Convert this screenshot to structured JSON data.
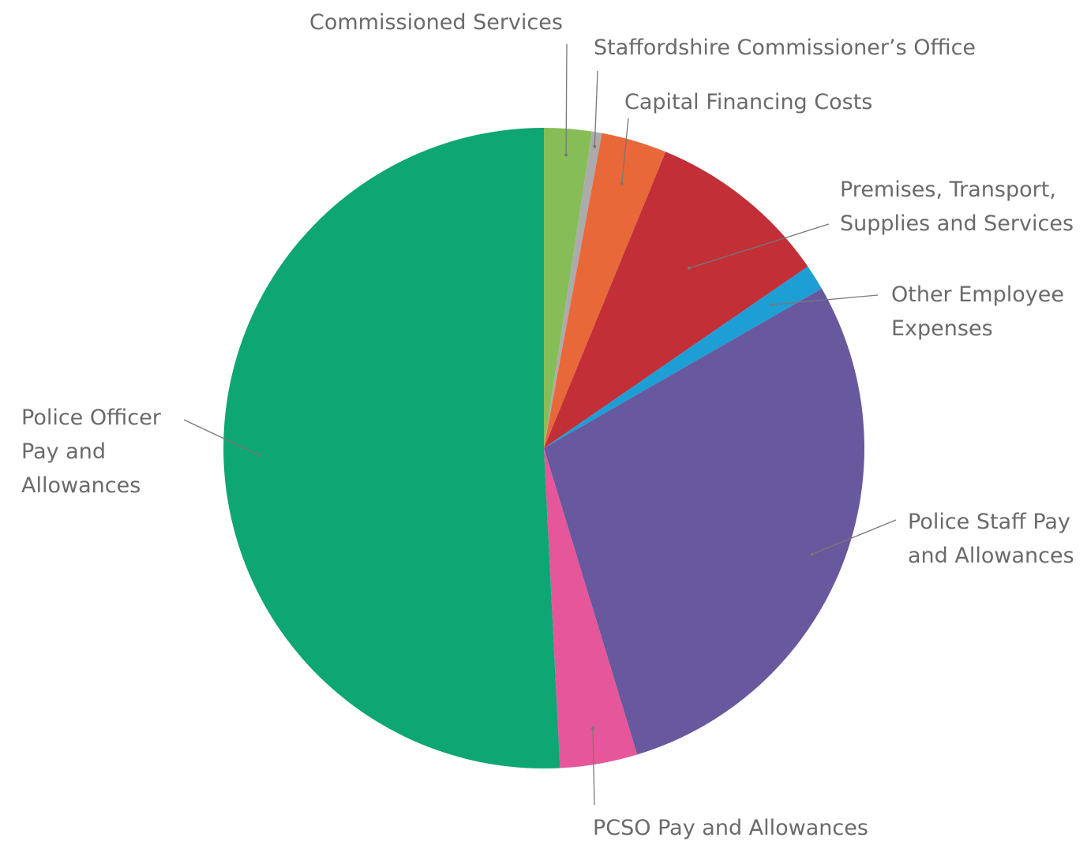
{
  "chart_data": {
    "type": "pie",
    "title": "",
    "start_angle_deg": 0,
    "direction": "clockwise",
    "slices": [
      {
        "label": "Commissioned Services",
        "value": 2.4,
        "color": "#86bd57"
      },
      {
        "label": "Staffordshire Commissioner’s Office",
        "value": 0.5,
        "color": "#ababab"
      },
      {
        "label": "Capital Financing Costs",
        "value": 3.3,
        "color": "#e9683a"
      },
      {
        "label": "Premises, Transport, Supplies and Services",
        "value": 9.2,
        "color": "#c22f37"
      },
      {
        "label": "Other Employee Expenses",
        "value": 1.3,
        "color": "#1d9fd5"
      },
      {
        "label": "Police Staff Pay and Allowances",
        "value": 28.6,
        "color": "#68589d"
      },
      {
        "label": "PCSO Pay and Allowances",
        "value": 3.9,
        "color": "#e6569a"
      },
      {
        "label": "Police Officer Pay and Allowances",
        "value": 50.8,
        "color": "#0ea673"
      }
    ]
  },
  "labels": {
    "commissioned": [
      "Commissioned Services"
    ],
    "office": [
      "Staffordshire Commissioner’s Office"
    ],
    "capital": [
      "Capital Financing Costs"
    ],
    "premises": [
      "Premises, Transport,",
      "Supplies and Services"
    ],
    "other": [
      "Other Employee",
      "Expenses"
    ],
    "staff": [
      "Police Staff Pay",
      "and Allowances"
    ],
    "pcso": [
      "PCSO Pay and Allowances"
    ],
    "officer": [
      "Police Officer",
      "Pay and",
      "Allowances"
    ]
  },
  "colors": {
    "label_text": "#6a6a6a",
    "leader_line": "#777777"
  }
}
